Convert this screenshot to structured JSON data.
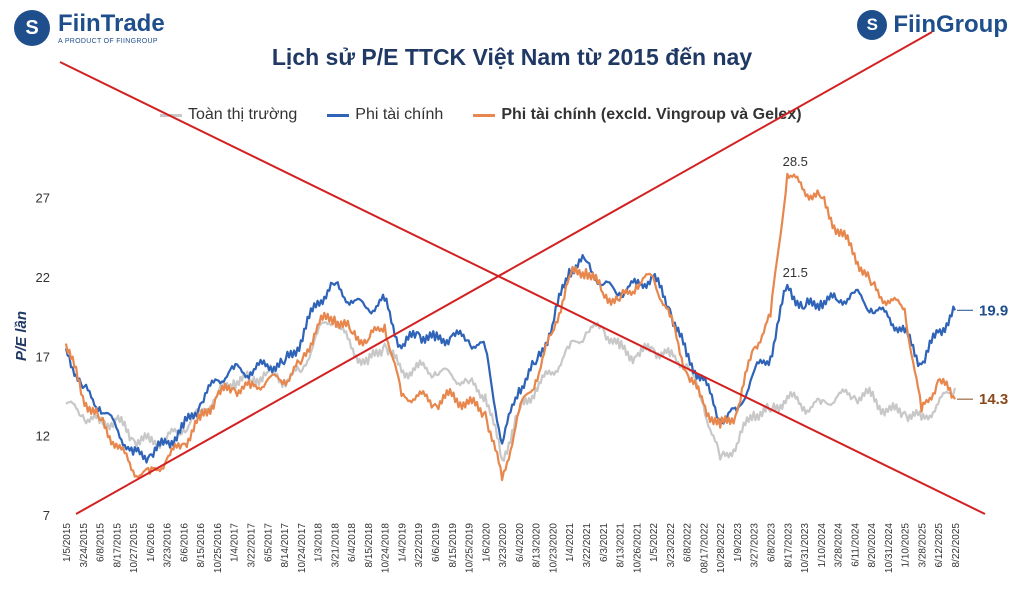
{
  "branding": {
    "left_logo_glyph": "S",
    "left_name": "FiinTrade",
    "left_subtitle": "A PRODUCT OF FIINGROUP",
    "right_logo_glyph": "S",
    "right_name": "FiinGroup"
  },
  "chart_data": {
    "type": "line",
    "title": "Lịch sử P/E TTCK Việt Nam từ 2015 đến nay",
    "ylabel": "P/E lần",
    "xlabel": "",
    "ylim": [
      7,
      30
    ],
    "yticks": [
      7,
      12,
      17,
      22,
      27
    ],
    "x_tick_labels": [
      "1/5/2015",
      "3/24/2015",
      "6/8/2015",
      "8/17/2015",
      "10/27/2015",
      "1/6/2016",
      "3/23/2016",
      "6/6/2016",
      "8/15/2016",
      "10/25/2016",
      "1/4/2017",
      "3/22/2017",
      "6/5/2017",
      "8/14/2017",
      "10/24/2017",
      "1/3/2018",
      "3/21/2018",
      "6/4/2018",
      "8/15/2018",
      "10/24/2018",
      "1/4/2019",
      "3/22/2019",
      "6/6/2019",
      "8/15/2019",
      "10/25/2019",
      "1/6/2020",
      "3/23/2020",
      "6/4/2020",
      "8/13/2020",
      "10/23/2020",
      "1/4/2021",
      "3/22/2021",
      "6/3/2021",
      "8/13/2021",
      "10/26/2021",
      "1/5/2022",
      "3/23/2022",
      "6/8/2022",
      "08/17/2022",
      "10/28/2022",
      "1/9/2023",
      "3/27/2023",
      "6/8/2023",
      "8/17/2023",
      "10/31/2023",
      "1/10/2024",
      "3/28/2024",
      "6/11/2024",
      "8/20/2024",
      "10/31/2024",
      "1/10/2025",
      "3/28/2025",
      "6/12/2025",
      "8/22/2025"
    ],
    "series": [
      {
        "name": "Toàn thị trường",
        "color": "#c8c8c8",
        "points": [
          [
            0,
            14.0
          ],
          [
            1,
            13.3
          ],
          [
            2,
            12.8
          ],
          [
            3,
            13.0
          ],
          [
            4,
            11.8
          ],
          [
            5,
            11.6
          ],
          [
            6,
            11.8
          ],
          [
            7,
            12.4
          ],
          [
            8,
            13.5
          ],
          [
            9,
            14.5
          ],
          [
            10,
            15.5
          ],
          [
            11,
            15.5
          ],
          [
            12,
            16.0
          ],
          [
            13,
            15.5
          ],
          [
            14,
            16.0
          ],
          [
            15,
            18.5
          ],
          [
            16,
            19.5
          ],
          [
            17,
            17.5
          ],
          [
            18,
            16.5
          ],
          [
            19,
            17.8
          ],
          [
            20,
            16.0
          ],
          [
            21,
            16.3
          ],
          [
            22,
            16.0
          ],
          [
            23,
            15.8
          ],
          [
            24,
            15.3
          ],
          [
            25,
            14.6
          ],
          [
            26,
            10.5
          ],
          [
            27,
            13.5
          ],
          [
            28,
            15.0
          ],
          [
            29,
            16.0
          ],
          [
            30,
            17.5
          ],
          [
            31,
            18.5
          ],
          [
            32,
            18.8
          ],
          [
            33,
            17.5
          ],
          [
            34,
            17.0
          ],
          [
            35,
            17.5
          ],
          [
            36,
            17.0
          ],
          [
            37,
            16.5
          ],
          [
            38,
            14.0
          ],
          [
            39,
            10.5
          ],
          [
            40,
            11.5
          ],
          [
            41,
            13.5
          ],
          [
            42,
            13.5
          ],
          [
            43,
            14.5
          ],
          [
            44,
            13.8
          ],
          [
            45,
            14.0
          ],
          [
            46,
            14.5
          ],
          [
            47,
            14.5
          ],
          [
            48,
            14.5
          ],
          [
            49,
            13.5
          ],
          [
            50,
            13.5
          ],
          [
            51,
            13.0
          ],
          [
            52,
            14.0
          ],
          [
            53,
            15.0
          ]
        ]
      },
      {
        "name": "Phi tài chính",
        "color": "#2e63b8",
        "points": [
          [
            0,
            17.5
          ],
          [
            1,
            15.0
          ],
          [
            2,
            13.8
          ],
          [
            3,
            12.5
          ],
          [
            4,
            10.8
          ],
          [
            5,
            10.8
          ],
          [
            6,
            11.5
          ],
          [
            7,
            12.5
          ],
          [
            8,
            14.0
          ],
          [
            9,
            15.5
          ],
          [
            10,
            16.2
          ],
          [
            11,
            16.0
          ],
          [
            12,
            16.5
          ],
          [
            13,
            16.5
          ],
          [
            14,
            18.0
          ],
          [
            15,
            20.5
          ],
          [
            16,
            21.5
          ],
          [
            17,
            20.5
          ],
          [
            18,
            20.0
          ],
          [
            19,
            20.5
          ],
          [
            20,
            17.5
          ],
          [
            21,
            18.5
          ],
          [
            22,
            18.0
          ],
          [
            23,
            18.3
          ],
          [
            24,
            18.0
          ],
          [
            25,
            17.5
          ],
          [
            26,
            11.5
          ],
          [
            27,
            15.0
          ],
          [
            28,
            16.5
          ],
          [
            29,
            19.0
          ],
          [
            30,
            22.5
          ],
          [
            31,
            23.0
          ],
          [
            32,
            21.5
          ],
          [
            33,
            21.0
          ],
          [
            34,
            21.5
          ],
          [
            35,
            22.0
          ],
          [
            36,
            20.0
          ],
          [
            37,
            17.0
          ],
          [
            38,
            15.5
          ],
          [
            39,
            13.0
          ],
          [
            40,
            13.5
          ],
          [
            41,
            16.0
          ],
          [
            42,
            17.0
          ],
          [
            43,
            21.5
          ],
          [
            44,
            20.0
          ],
          [
            45,
            20.5
          ],
          [
            46,
            20.5
          ],
          [
            47,
            21.0
          ],
          [
            48,
            20.0
          ],
          [
            49,
            19.5
          ],
          [
            50,
            18.5
          ],
          [
            51,
            16.5
          ],
          [
            52,
            18.5
          ],
          [
            53,
            19.9
          ]
        ]
      },
      {
        "name": "Phi tài chính (excld. Vingroup và Gelex)",
        "color": "#e8874d",
        "points": [
          [
            0,
            17.8
          ],
          [
            1,
            14.5
          ],
          [
            2,
            13.0
          ],
          [
            3,
            11.5
          ],
          [
            4,
            9.8
          ],
          [
            5,
            9.6
          ],
          [
            6,
            10.5
          ],
          [
            7,
            11.5
          ],
          [
            8,
            13.0
          ],
          [
            9,
            14.5
          ],
          [
            10,
            15.0
          ],
          [
            11,
            15.0
          ],
          [
            12,
            15.5
          ],
          [
            13,
            15.5
          ],
          [
            14,
            16.5
          ],
          [
            15,
            19.0
          ],
          [
            16,
            19.5
          ],
          [
            17,
            18.5
          ],
          [
            18,
            18.0
          ],
          [
            19,
            19.0
          ],
          [
            20,
            14.5
          ],
          [
            21,
            14.5
          ],
          [
            22,
            14.0
          ],
          [
            23,
            14.5
          ],
          [
            24,
            14.0
          ],
          [
            25,
            13.5
          ],
          [
            26,
            9.2
          ],
          [
            27,
            13.5
          ],
          [
            28,
            15.5
          ],
          [
            29,
            18.5
          ],
          [
            30,
            22.0
          ],
          [
            31,
            22.5
          ],
          [
            32,
            21.0
          ],
          [
            33,
            20.5
          ],
          [
            34,
            21.5
          ],
          [
            35,
            22.0
          ],
          [
            36,
            19.5
          ],
          [
            37,
            16.0
          ],
          [
            38,
            14.0
          ],
          [
            39,
            12.5
          ],
          [
            40,
            13.5
          ],
          [
            41,
            17.5
          ],
          [
            42,
            19.5
          ],
          [
            43,
            28.5
          ],
          [
            44,
            27.5
          ],
          [
            45,
            27.0
          ],
          [
            46,
            25.0
          ],
          [
            47,
            23.5
          ],
          [
            48,
            21.5
          ],
          [
            49,
            20.5
          ],
          [
            50,
            20.0
          ],
          [
            51,
            13.5
          ],
          [
            52,
            15.5
          ],
          [
            53,
            14.3
          ]
        ]
      }
    ],
    "annotations": [
      {
        "text": "28.5",
        "x": 43,
        "y": 28.5
      },
      {
        "text": "21.5",
        "x": 43,
        "y": 21.5
      }
    ],
    "end_labels": [
      {
        "text": "19.9",
        "value": 19.9,
        "color": "#1f4e8c"
      },
      {
        "text": "14.3",
        "value": 14.3,
        "color": "#8a4a1c"
      }
    ],
    "overlay_cross_color": "#d32020",
    "grid": false,
    "legend_position": "top"
  }
}
